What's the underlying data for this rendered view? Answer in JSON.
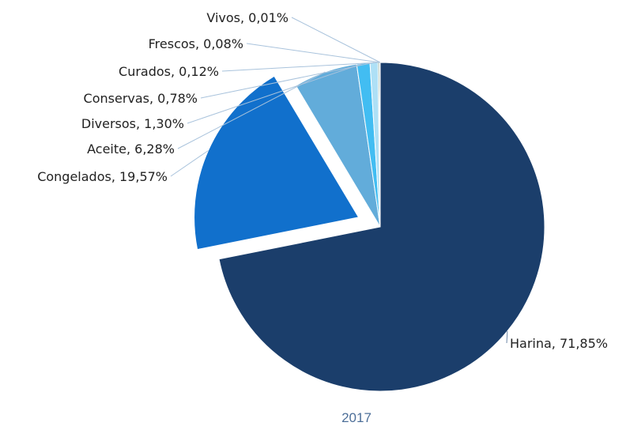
{
  "chart_data": {
    "type": "pie",
    "caption": "2017",
    "slices": [
      {
        "label": "Harina, 71,85%",
        "name": "Harina",
        "value": 71.85,
        "color": "#1b3e6b"
      },
      {
        "label": "Congelados, 19,57%",
        "name": "Congelados",
        "value": 19.57,
        "color": "#1170cc"
      },
      {
        "label": "Aceite, 6,28%",
        "name": "Aceite",
        "value": 6.28,
        "color": "#62acda"
      },
      {
        "label": "Diversos, 1,30%",
        "name": "Diversos",
        "value": 1.3,
        "color": "#42bdf2"
      },
      {
        "label": "Conservas, 0,78%",
        "name": "Conservas",
        "value": 0.78,
        "color": "#aee0f6"
      },
      {
        "label": "Curados, 0,12%",
        "name": "Curados",
        "value": 0.12,
        "color": "#2d6e54"
      },
      {
        "label": "Frescos, 0,08%",
        "name": "Frescos",
        "value": 0.08,
        "color": "#123a2c"
      },
      {
        "label": "Vivos, 0,01%",
        "name": "Vivos",
        "value": 0.01,
        "color": "#6ed0b8"
      }
    ],
    "exploded_slice": "Congelados"
  }
}
